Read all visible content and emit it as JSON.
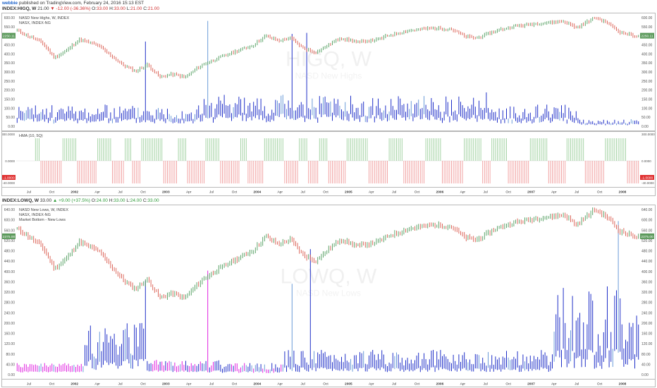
{
  "header": {
    "user": "webbie",
    "published": "published on TradingView.com, February 24, 2016 15:13 EST"
  },
  "top_quote": {
    "symbol": "INDEX:HIGQ, W",
    "last": "21.00",
    "change": "▼ -12.00 (-36.36%)",
    "o_label": "O:",
    "o": "33.00",
    "h_label": "H:",
    "h": "33.00",
    "l_label": "L:",
    "l": "21.00",
    "c_label": "C:",
    "c": "21.00"
  },
  "bottom_quote": {
    "symbol": "INDEX:LOWQ, W",
    "last": "33.00",
    "change": "▲ +9.00 (+37.5%)",
    "o_label": "O:",
    "o": "24.00",
    "h_label": "H:",
    "h": "33.00",
    "l_label": "L:",
    "l": "24.00",
    "c_label": "C:",
    "c": "33.00"
  },
  "panel1": {
    "title": "NASD New Highs, W, INDEX",
    "subtitle": "NASX, INDEX-NG",
    "watermark": "HIGQ, W",
    "watermark2": "NASD New Highs"
  },
  "panel2": {
    "title": "HMA (10, 5Q)"
  },
  "panel3": {
    "title": "NASD New Lows, W, INDEX",
    "subtitle": "NASX, INDEX-NG",
    "subtitle2": "Market Bottom - New Lows",
    "watermark": "LOWQ, W",
    "watermark2": "NASD New Lows"
  },
  "colors": {
    "up_candle": "#4c9a5a",
    "down_candle": "#d9584a",
    "volume_bar": "#1f2fc8",
    "light_bar": "#6a9bd8",
    "magenta_bar": "#e020e0",
    "osc_pos": "#9ccf9c",
    "osc_neg": "#f09a9a",
    "price_tag": "#5c9a5c",
    "neg_tag": "#e03030"
  },
  "chart_data": [
    {
      "type": "bar",
      "name": "NASD New Highs",
      "y_ticks": [
        "600.00",
        "550.00",
        "500.00",
        "450.00",
        "400.00",
        "350.00",
        "300.00",
        "250.00",
        "200.00",
        "150.00",
        "100.00",
        "50.00",
        "0.00"
      ],
      "ylim": [
        0,
        620
      ],
      "last_price_tag": "2250.11",
      "new_highs_weekly_sample": [
        45,
        60,
        55,
        40,
        65,
        70,
        50,
        30,
        45,
        55,
        60,
        75,
        80,
        65,
        55,
        40,
        35,
        50,
        60,
        45,
        70,
        85,
        90,
        75,
        60,
        55,
        65,
        70,
        80,
        60,
        50,
        45,
        55,
        480,
        60,
        70,
        65,
        55,
        50,
        45,
        60,
        70,
        55,
        50,
        65,
        75,
        80,
        120,
        140,
        150,
        180,
        160,
        130,
        110,
        100,
        95,
        110,
        130,
        150,
        170,
        190,
        210,
        200,
        180,
        175,
        160,
        150,
        140,
        120,
        110,
        95,
        130,
        140,
        150,
        120,
        100,
        110,
        90,
        80,
        100,
        120,
        140,
        160,
        130,
        120,
        100,
        95,
        85,
        100,
        110,
        130,
        150,
        160,
        140,
        130,
        110,
        100,
        90,
        120,
        140,
        160,
        150,
        130,
        120,
        100,
        95,
        90,
        80,
        70,
        60,
        50,
        45,
        40,
        35,
        30
      ]
    },
    {
      "type": "bar",
      "name": "HMA (10, 5Q)",
      "y_ticks": [
        "300.0000",
        "0.0000",
        "-40.0000"
      ],
      "ylim": [
        -45,
        45
      ],
      "last_value_tag": "-1.0000"
    },
    {
      "type": "bar",
      "name": "NASD New Lows",
      "y_ticks": [
        "640.00",
        "600.00",
        "560.00",
        "520.00",
        "480.00",
        "440.00",
        "400.00",
        "360.00",
        "320.00",
        "280.00",
        "240.00",
        "200.00",
        "160.00",
        "120.00",
        "80.00",
        "40.00",
        "0.00"
      ],
      "ylim": [
        0,
        660
      ],
      "last_price_tag": "2375.00"
    }
  ],
  "x_axis_labels": [
    "Jul",
    "Oct",
    "2002",
    "Apr",
    "Jul",
    "Oct",
    "2003",
    "Apr",
    "Jul",
    "Oct",
    "2004",
    "Apr",
    "Jul",
    "Oct",
    "2005",
    "Apr",
    "Jul",
    "Oct",
    "2006",
    "Apr",
    "Jul",
    "Oct",
    "2007",
    "Apr",
    "Jul",
    "Oct",
    "2008"
  ]
}
